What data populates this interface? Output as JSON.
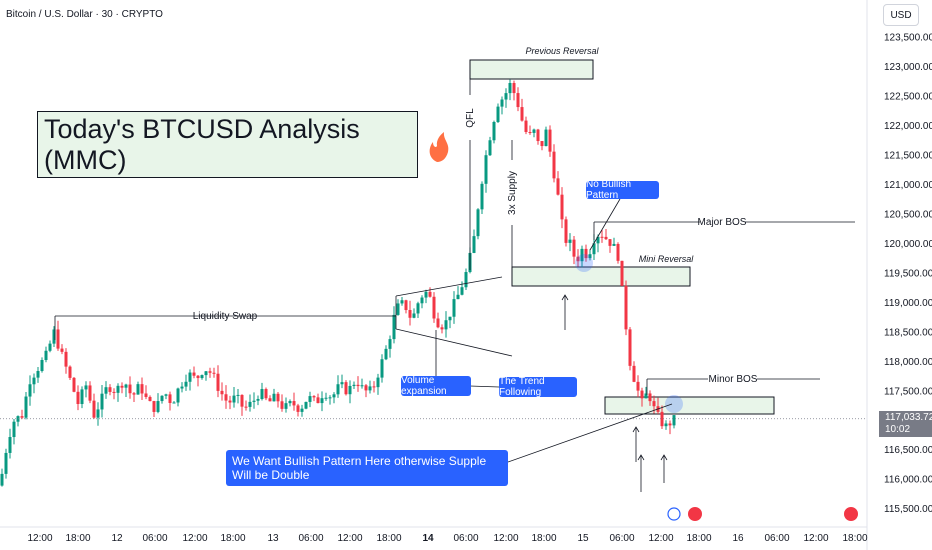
{
  "header": {
    "symbol_line": "Bitcoin / U.S. Dollar · 30 · CRYPTO",
    "currency": "USD"
  },
  "title_box": "Today's BTCUSD Analysis (MMC)",
  "last_price": {
    "value": "117,033.72",
    "countdown": "10:02"
  },
  "annotations": {
    "previous_reversal": "Previous Reversal",
    "qfl": "QFL",
    "supply": "3x Supply",
    "no_bullish_pattern": "No Bullish Pattern",
    "major_bos": "Major BOS",
    "mini_reversal": "Mini Reversal",
    "liquidity_swap": "Liquidity Swap",
    "volume_expansion": "Volume expansion",
    "trend_following": "The Trend Following",
    "minor_bos": "Minor BOS",
    "bullish_note": "We Want Bullish Pattern Here otherwise Supple Will be Double"
  },
  "colors": {
    "up": "#089981",
    "down": "#f23645",
    "zone_fill": "#e8f5e9",
    "label_blue": "#2962ff"
  },
  "chart_data": {
    "type": "candlestick",
    "ylim": [
      115350,
      123800
    ],
    "y_ticks": [
      115500,
      116000,
      116500,
      117000,
      117500,
      118000,
      118500,
      119000,
      119500,
      120000,
      120500,
      121000,
      121500,
      122000,
      122500,
      123000,
      123500
    ],
    "y_tick_labels": [
      "115,500.00",
      "116,000.00",
      "116,500.00",
      "117,000.00",
      "117,500.00",
      "118,000.00",
      "118,500.00",
      "119,000.00",
      "119,500.00",
      "120,000.00",
      "120,500.00",
      "121,000.00",
      "121,500.00",
      "122,000.00",
      "122,500.00",
      "123,000.00",
      "123,500.00"
    ],
    "x_tick_labels": [
      "12:00",
      "18:00",
      "12",
      "06:00",
      "12:00",
      "18:00",
      "13",
      "06:00",
      "12:00",
      "18:00",
      "14",
      "06:00",
      "12:00",
      "18:00",
      "15",
      "06:00",
      "12:00",
      "18:00",
      "16",
      "06:00",
      "12:00",
      "18:00"
    ],
    "price_path": [
      [
        0,
        115900
      ],
      [
        8,
        116700
      ],
      [
        14,
        117000
      ],
      [
        22,
        117100
      ],
      [
        30,
        117700
      ],
      [
        38,
        117900
      ],
      [
        46,
        118100
      ],
      [
        54,
        118500
      ],
      [
        62,
        118100
      ],
      [
        70,
        117700
      ],
      [
        78,
        117300
      ],
      [
        86,
        117600
      ],
      [
        94,
        117100
      ],
      [
        100,
        117300
      ],
      [
        108,
        117600
      ],
      [
        116,
        117500
      ],
      [
        124,
        117700
      ],
      [
        132,
        117400
      ],
      [
        140,
        117600
      ],
      [
        148,
        117300
      ],
      [
        156,
        117200
      ],
      [
        164,
        117500
      ],
      [
        172,
        117300
      ],
      [
        180,
        117600
      ],
      [
        188,
        117800
      ],
      [
        196,
        117700
      ],
      [
        204,
        117900
      ],
      [
        212,
        117800
      ],
      [
        220,
        117500
      ],
      [
        228,
        117300
      ],
      [
        236,
        117400
      ],
      [
        244,
        117200
      ],
      [
        252,
        117300
      ],
      [
        260,
        117500
      ],
      [
        268,
        117300
      ],
      [
        276,
        117400
      ],
      [
        284,
        117200
      ],
      [
        292,
        117300
      ],
      [
        300,
        117200
      ],
      [
        308,
        117400
      ],
      [
        316,
        117300
      ],
      [
        324,
        117500
      ],
      [
        332,
        117400
      ],
      [
        340,
        117600
      ],
      [
        348,
        117500
      ],
      [
        356,
        117700
      ],
      [
        364,
        117500
      ],
      [
        372,
        117500
      ],
      [
        380,
        117900
      ],
      [
        388,
        118300
      ],
      [
        396,
        118900
      ],
      [
        404,
        119000
      ],
      [
        412,
        118700
      ],
      [
        420,
        119100
      ],
      [
        428,
        119200
      ],
      [
        436,
        118700
      ],
      [
        444,
        118600
      ],
      [
        452,
        118900
      ],
      [
        460,
        119200
      ],
      [
        468,
        119600
      ],
      [
        474,
        120100
      ],
      [
        480,
        120900
      ],
      [
        486,
        121500
      ],
      [
        492,
        122000
      ],
      [
        498,
        122400
      ],
      [
        504,
        122500
      ],
      [
        510,
        122700
      ],
      [
        516,
        122500
      ],
      [
        522,
        122100
      ],
      [
        528,
        121800
      ],
      [
        534,
        121900
      ],
      [
        540,
        121600
      ],
      [
        546,
        121900
      ],
      [
        552,
        121400
      ],
      [
        558,
        120800
      ],
      [
        564,
        120100
      ],
      [
        570,
        120000
      ],
      [
        576,
        119700
      ],
      [
        582,
        119900
      ],
      [
        588,
        119800
      ],
      [
        594,
        120100
      ],
      [
        600,
        120200
      ],
      [
        606,
        120100
      ],
      [
        612,
        120000
      ],
      [
        618,
        119800
      ],
      [
        624,
        118900
      ],
      [
        630,
        118000
      ],
      [
        636,
        117600
      ],
      [
        642,
        117300
      ],
      [
        648,
        117500
      ],
      [
        654,
        117200
      ],
      [
        660,
        117000
      ],
      [
        666,
        116900
      ],
      [
        672,
        117000
      ],
      [
        676,
        117030
      ]
    ]
  }
}
